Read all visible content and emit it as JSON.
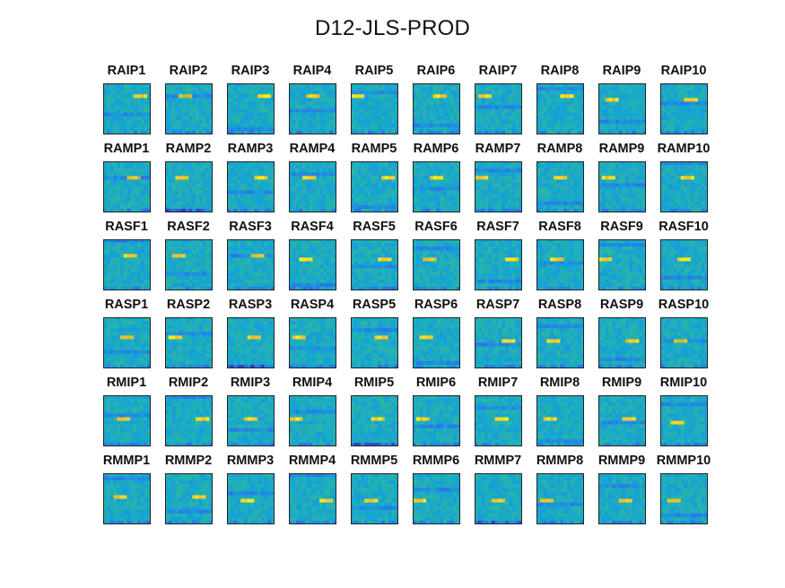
{
  "title": "D12-JLS-PROD",
  "chart_data": {
    "type": "heatmap",
    "title": "D12-JLS-PROD",
    "layout": "small-multiples",
    "colormap": [
      "#3e26a8",
      "#2d6ff0",
      "#14a5d3",
      "#36be8c",
      "#a9c234",
      "#f2c132",
      "#f9fb0e"
    ],
    "axis_ticks": false,
    "grid": false,
    "rows": [
      [
        "RAIP1",
        "RAIP2",
        "RAIP3",
        "RAIP4",
        "RAIP5",
        "RAIP6",
        "RAIP7",
        "RAIP8",
        "RAIP9",
        "RAIP10"
      ],
      [
        "RAMP1",
        "RAMP2",
        "RAMP3",
        "RAMP4",
        "RAMP5",
        "RAMP6",
        "RAMP7",
        "RAMP8",
        "RAMP9",
        "RAMP10"
      ],
      [
        "RASF1",
        "RASF2",
        "RASF3",
        "RASF4",
        "RASF5",
        "RASF6",
        "RASF7",
        "RASF8",
        "RASF9",
        "RASF10"
      ],
      [
        "RASP1",
        "RASP2",
        "RASP3",
        "RASP4",
        "RASP5",
        "RASP6",
        "RASP7",
        "RASP8",
        "RASP9",
        "RASP10"
      ],
      [
        "RMIP1",
        "RMIP2",
        "RMIP3",
        "RMIP4",
        "RMIP5",
        "RMIP6",
        "RMIP7",
        "RMIP8",
        "RMIP9",
        "RMIP10"
      ],
      [
        "RMMP1",
        "RMMP2",
        "RMMP3",
        "RMMP4",
        "RMMP5",
        "RMMP6",
        "RMMP7",
        "RMMP8",
        "RMMP9",
        "RMMP10"
      ]
    ]
  }
}
